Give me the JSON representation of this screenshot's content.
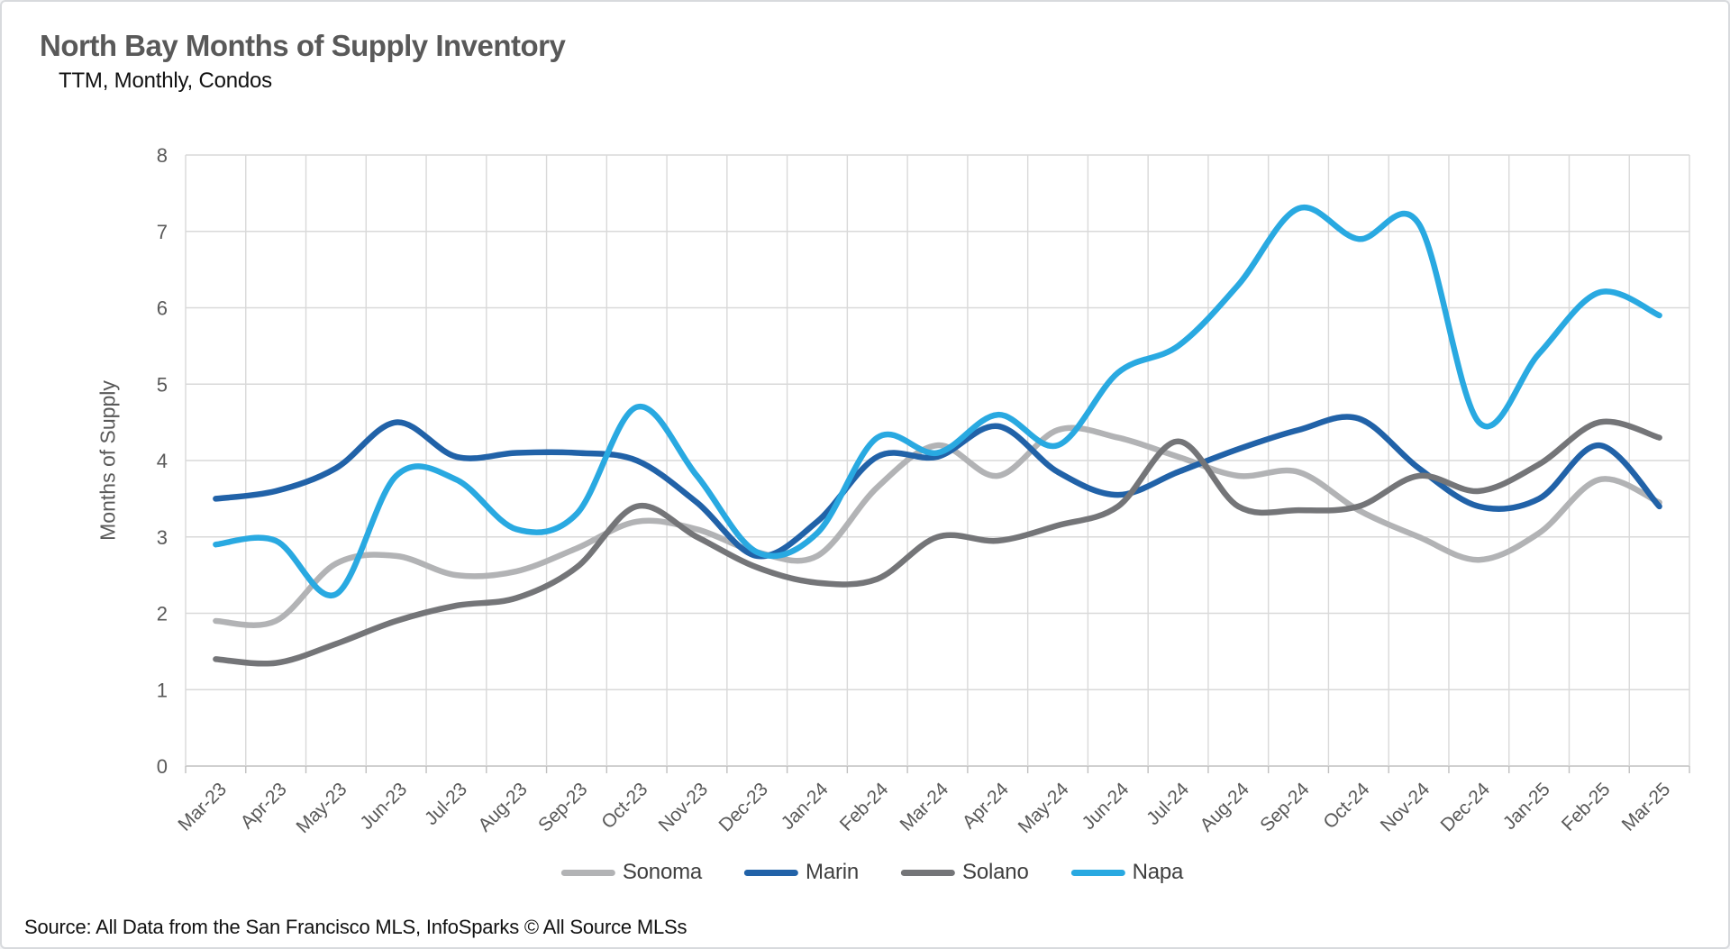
{
  "page": {
    "title": "North Bay Months of Supply Inventory",
    "subtitle": "TTM, Monthly, Condos",
    "source": "Source: All Data from the San Francisco MLS, InfoSparks © All Source MLSs"
  },
  "chart_data": {
    "type": "line",
    "smooth": true,
    "title": "North Bay Months of Supply Inventory",
    "subtitle": "TTM, Monthly, Condos",
    "xlabel": "",
    "ylabel": "Months of Supply",
    "ylim": [
      0,
      8
    ],
    "y_ticks": [
      0,
      1,
      2,
      3,
      4,
      5,
      6,
      7,
      8
    ],
    "grid": true,
    "legend_position": "bottom",
    "categories": [
      "Mar-23",
      "Apr-23",
      "May-23",
      "Jun-23",
      "Jul-23",
      "Aug-23",
      "Sep-23",
      "Oct-23",
      "Nov-23",
      "Dec-23",
      "Jan-24",
      "Feb-24",
      "Mar-24",
      "Apr-24",
      "May-24",
      "Jun-24",
      "Jul-24",
      "Aug-24",
      "Sep-24",
      "Oct-24",
      "Nov-24",
      "Dec-24",
      "Jan-25",
      "Feb-25",
      "Mar-25"
    ],
    "series": [
      {
        "name": "Sonoma",
        "color": "#B2B3B5",
        "values": [
          1.9,
          1.9,
          2.65,
          2.75,
          2.5,
          2.55,
          2.85,
          3.2,
          3.1,
          2.8,
          2.75,
          3.65,
          4.2,
          3.8,
          4.4,
          4.3,
          4.05,
          3.8,
          3.85,
          3.35,
          3.0,
          2.7,
          3.05,
          3.75,
          3.45
        ]
      },
      {
        "name": "Marin",
        "color": "#2162A8",
        "values": [
          3.5,
          3.6,
          3.9,
          4.5,
          4.05,
          4.1,
          4.1,
          4.0,
          3.45,
          2.75,
          3.2,
          4.05,
          4.05,
          4.45,
          3.85,
          3.55,
          3.85,
          4.15,
          4.4,
          4.55,
          3.9,
          3.4,
          3.5,
          4.2,
          3.4
        ]
      },
      {
        "name": "Solano",
        "color": "#747578",
        "values": [
          1.4,
          1.35,
          1.6,
          1.9,
          2.1,
          2.2,
          2.6,
          3.4,
          3.0,
          2.6,
          2.4,
          2.45,
          3.0,
          2.95,
          3.15,
          3.4,
          4.25,
          3.4,
          3.35,
          3.4,
          3.8,
          3.6,
          3.95,
          4.5,
          4.3
        ]
      },
      {
        "name": "Napa",
        "color": "#29A9E1",
        "values": [
          2.9,
          2.95,
          2.25,
          3.8,
          3.75,
          3.1,
          3.3,
          4.7,
          3.8,
          2.8,
          3.05,
          4.3,
          4.1,
          4.6,
          4.2,
          5.15,
          5.5,
          6.3,
          7.3,
          6.9,
          7.1,
          4.5,
          5.4,
          6.2,
          5.9
        ]
      }
    ],
    "colors": {
      "gridline": "#D9D9D9",
      "axis_line": "#C0C0C0",
      "axis_text": "#595959",
      "title_text": "#595959",
      "legend_text": "#3F3F3F"
    }
  }
}
